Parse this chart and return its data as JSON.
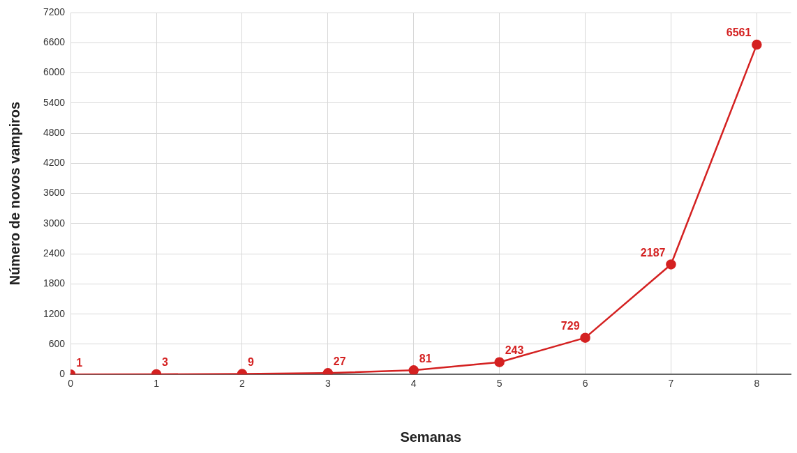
{
  "chart_data": {
    "type": "line",
    "xlabel": "Semanas",
    "ylabel": "Número de novos vampiros",
    "x": [
      0,
      1,
      2,
      3,
      4,
      5,
      6,
      7,
      8
    ],
    "series": [
      {
        "color": "#d42121",
        "values": [
          1,
          3,
          9,
          27,
          81,
          243,
          729,
          2187,
          6561
        ]
      }
    ],
    "xlim": [
      0,
      8.4
    ],
    "xticks": [
      0,
      1,
      2,
      3,
      4,
      5,
      6,
      7,
      8
    ],
    "ylim": [
      0,
      7200
    ],
    "yticks": [
      0,
      600,
      1200,
      1800,
      2400,
      3000,
      3600,
      4200,
      4800,
      5400,
      6000,
      6600,
      7200
    ],
    "grid": true,
    "legend": false,
    "marker": "circle",
    "line_style": "solid",
    "data_labels": true
  }
}
